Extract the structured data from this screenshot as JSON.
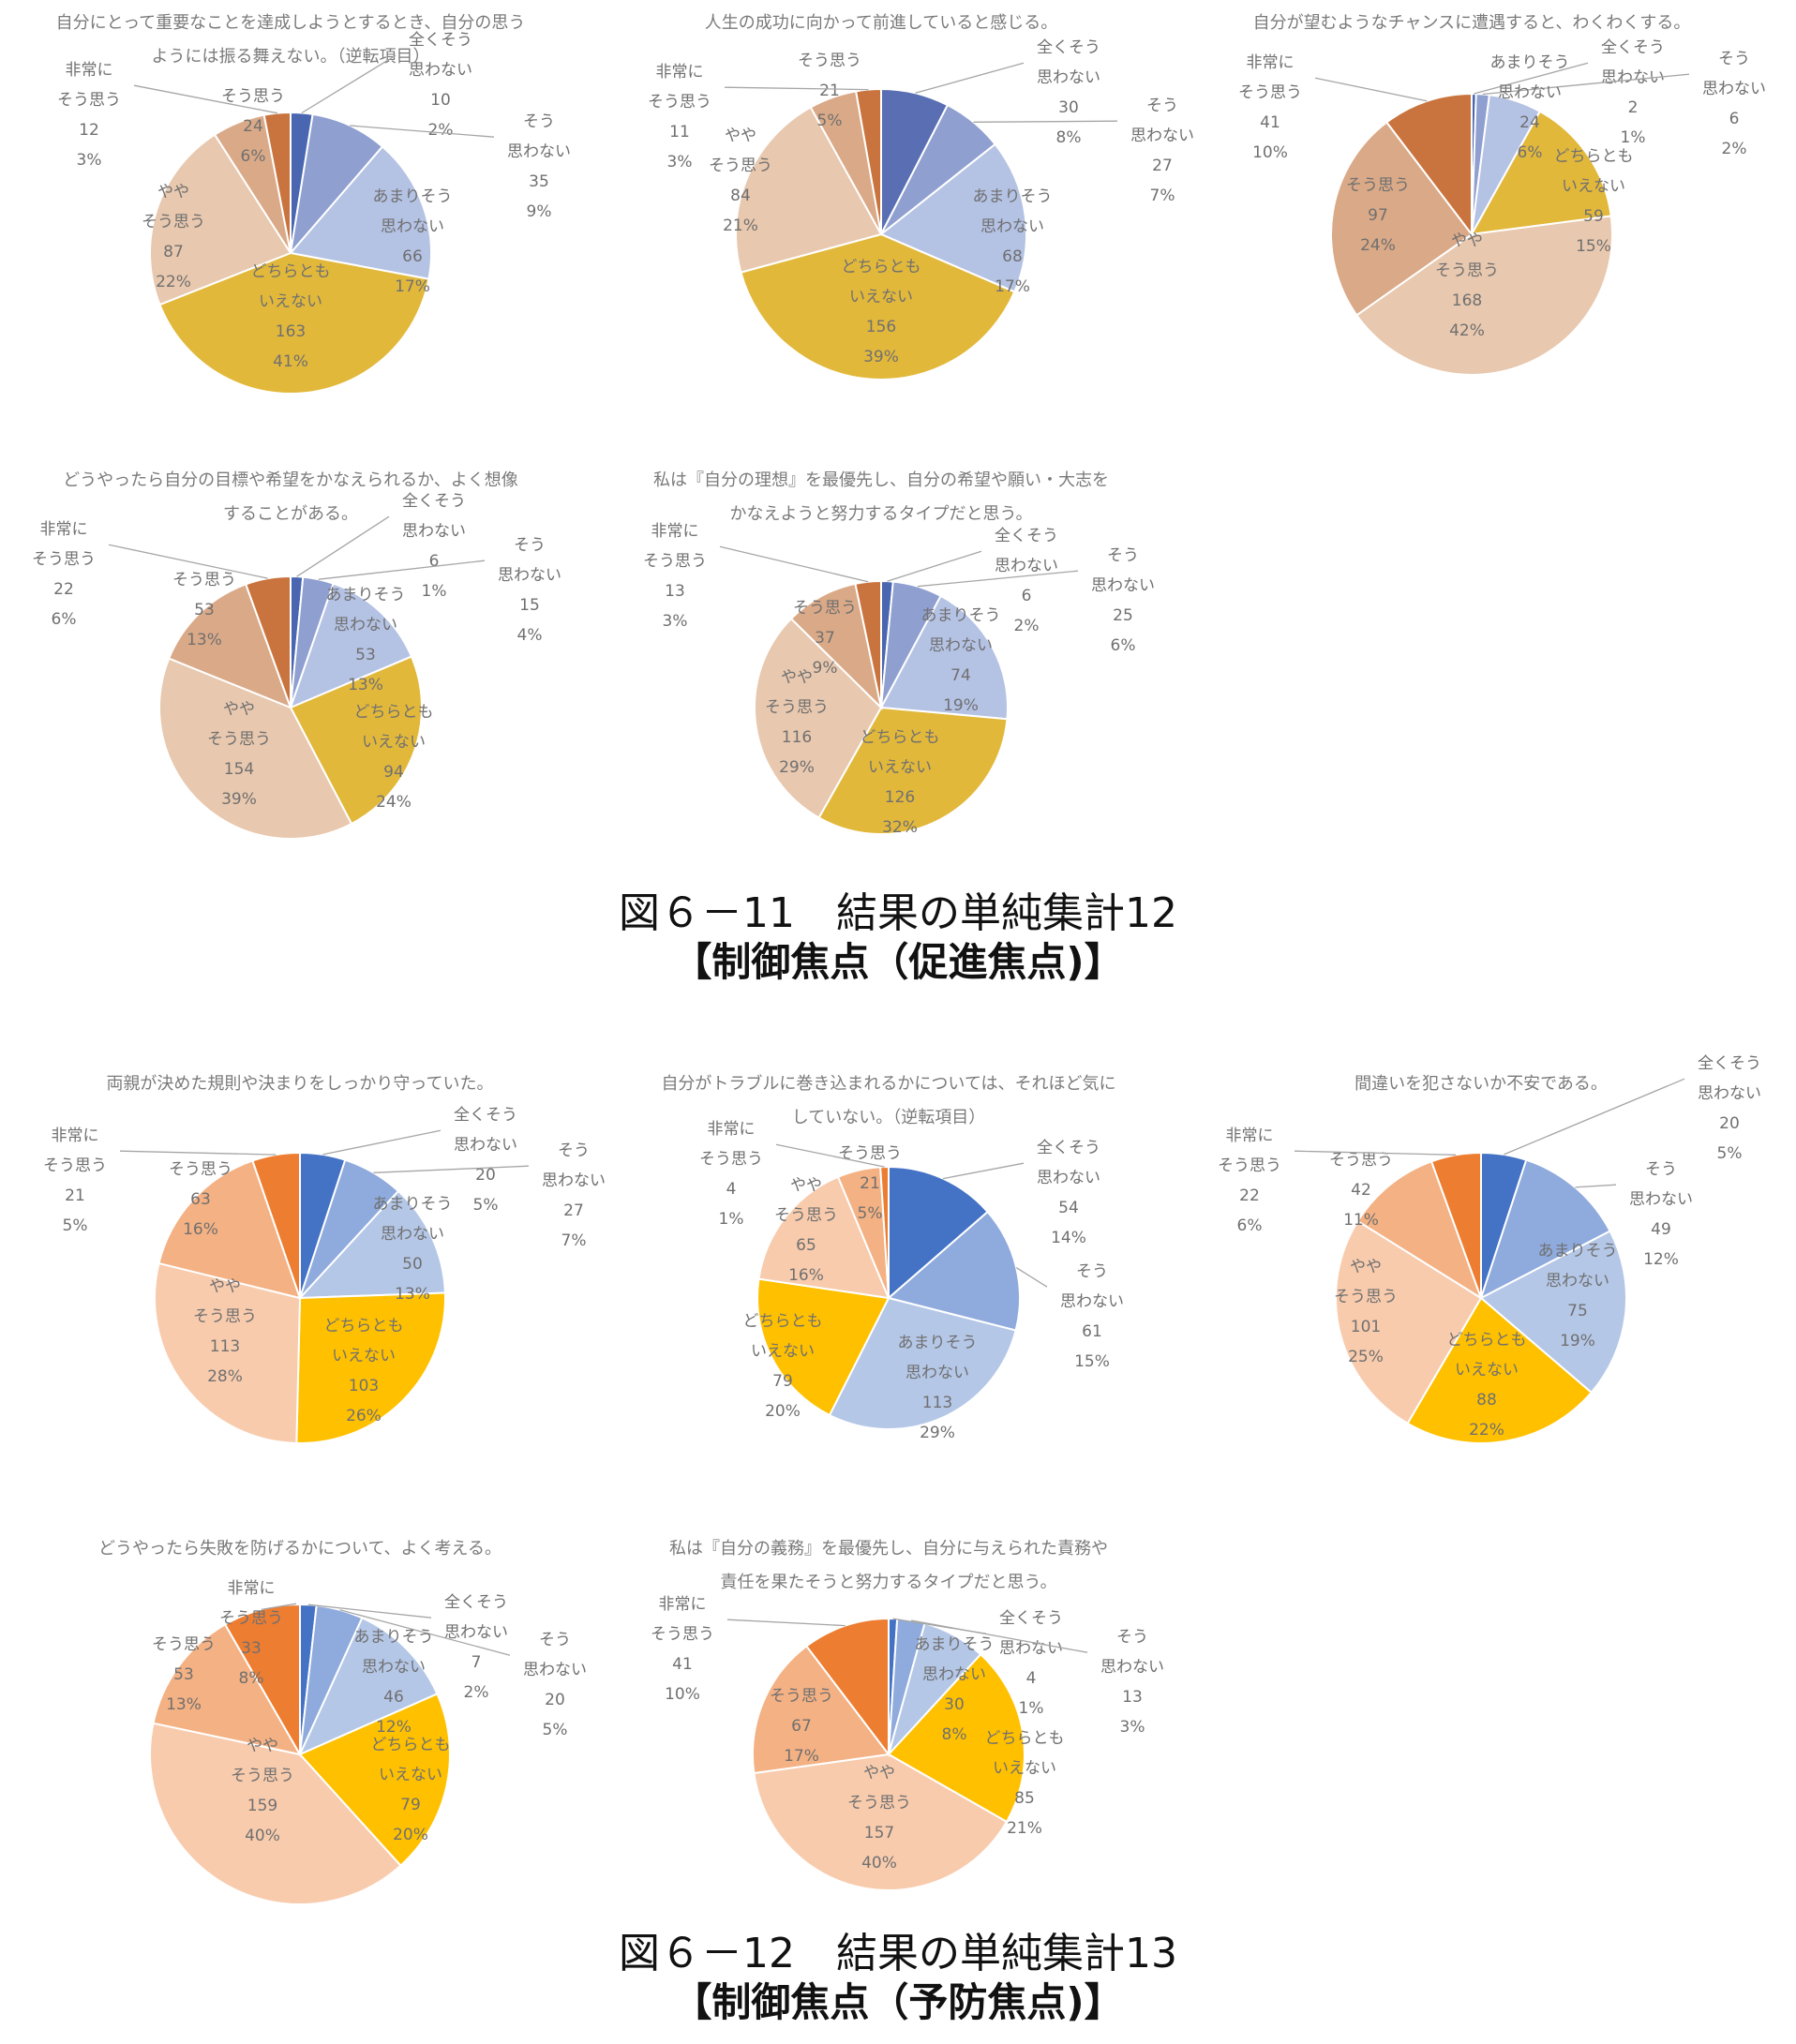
{
  "figures": [
    {
      "line1": "図６－11　結果の単純集計12",
      "line2": "【制御焦点（促進焦点)】"
    },
    {
      "line1": "図６－12　結果の単純集計13",
      "line2": "【制御焦点（予防焦点)】"
    }
  ],
  "chart_data": [
    {
      "type": "pie",
      "figure": 0,
      "title": [
        "自分にとって重要なことを達成しようとするとき、自分の思う",
        "ようには振る舞えない。（逆転項目）"
      ],
      "categories": [
        "全くそう思わない",
        "そう思わない",
        "あまりそう思わない",
        "どちらともいえない",
        "ややそう思う",
        "そう思う",
        "非常にそう思う"
      ],
      "values": [
        10,
        35,
        66,
        163,
        87,
        24,
        12
      ],
      "percents": [
        "2%",
        "9%",
        "17%",
        "41%",
        "22%",
        "6%",
        "3%"
      ],
      "colors": [
        "#4a66b0",
        "#8f9fd0",
        "#b4c2e4",
        "#e2b83b",
        "#e8c8ae",
        "#daa987",
        "#c9743e"
      ]
    },
    {
      "type": "pie",
      "figure": 0,
      "title": [
        "人生の成功に向かって前進していると感じる。"
      ],
      "categories": [
        "全くそう思わない",
        "そう思わない",
        "あまりそう思わない",
        "どちらともいえない",
        "ややそう思う",
        "そう思う",
        "非常にそう思う"
      ],
      "values": [
        30,
        27,
        68,
        156,
        84,
        21,
        11
      ],
      "percents": [
        "8%",
        "7%",
        "17%",
        "39%",
        "21%",
        "5%",
        "3%"
      ],
      "colors": [
        "#5a6fb3",
        "#8f9fd0",
        "#b4c2e4",
        "#e2b83b",
        "#e8c8ae",
        "#daa987",
        "#c9743e"
      ]
    },
    {
      "type": "pie",
      "figure": 0,
      "title": [
        "自分が望むようなチャンスに遭遇すると、わくわくする。"
      ],
      "categories": [
        "全くそう思わない",
        "そう思わない",
        "あまりそう思わない",
        "どちらともいえない",
        "ややそう思う",
        "そう思う",
        "非常にそう思う"
      ],
      "values": [
        2,
        6,
        24,
        59,
        168,
        97,
        41
      ],
      "percents": [
        "1%",
        "2%",
        "6%",
        "15%",
        "42%",
        "24%",
        "10%"
      ],
      "colors": [
        "#4a66b0",
        "#8f9fd0",
        "#b4c2e4",
        "#e2b83b",
        "#e8c8ae",
        "#daa987",
        "#c9743e"
      ]
    },
    {
      "type": "pie",
      "figure": 0,
      "title": [
        "どうやったら自分の目標や希望をかなえられるか、よく想像",
        "することがある。"
      ],
      "categories": [
        "全くそう思わない",
        "そう思わない",
        "あまりそう思わない",
        "どちらともいえない",
        "ややそう思う",
        "そう思う",
        "非常にそう思う"
      ],
      "values": [
        6,
        15,
        53,
        94,
        154,
        53,
        22
      ],
      "percents": [
        "1%",
        "4%",
        "13%",
        "24%",
        "39%",
        "13%",
        "6%"
      ],
      "colors": [
        "#4a66b0",
        "#8f9fd0",
        "#b4c2e4",
        "#e2b83b",
        "#e8c8ae",
        "#daa987",
        "#c9743e"
      ]
    },
    {
      "type": "pie",
      "figure": 0,
      "title": [
        "私は『自分の理想』を最優先し、自分の希望や願い・大志を",
        "かなえようと努力するタイプだと思う。"
      ],
      "categories": [
        "全くそう思わない",
        "そう思わない",
        "あまりそう思わない",
        "どちらともいえない",
        "ややそう思う",
        "そう思う",
        "非常にそう思う"
      ],
      "values": [
        6,
        25,
        74,
        126,
        116,
        37,
        13
      ],
      "percents": [
        "2%",
        "6%",
        "19%",
        "32%",
        "29%",
        "9%",
        "3%"
      ],
      "colors": [
        "#4a66b0",
        "#8f9fd0",
        "#b4c2e4",
        "#e2b83b",
        "#e8c8ae",
        "#daa987",
        "#c9743e"
      ]
    },
    {
      "type": "pie",
      "figure": 1,
      "title": [
        "両親が決めた規則や決まりをしっかり守っていた。"
      ],
      "categories": [
        "全くそう思わない",
        "そう思わない",
        "あまりそう思わない",
        "どちらともいえない",
        "ややそう思う",
        "そう思う",
        "非常にそう思う"
      ],
      "values": [
        20,
        27,
        50,
        103,
        113,
        63,
        21
      ],
      "percents": [
        "5%",
        "7%",
        "13%",
        "26%",
        "28%",
        "16%",
        "5%"
      ],
      "colors": [
        "#4472c4",
        "#8faadc",
        "#b4c7e7",
        "#ffc000",
        "#f8cbad",
        "#f4b183",
        "#ed7d31"
      ]
    },
    {
      "type": "pie",
      "figure": 1,
      "title": [
        "自分がトラブルに巻き込まれるかについては、それほど気に",
        "していない。（逆転項目）"
      ],
      "categories": [
        "全くそう思わない",
        "そう思わない",
        "あまりそう思わない",
        "どちらともいえない",
        "ややそう思う",
        "そう思う",
        "非常にそう思う"
      ],
      "values": [
        54,
        61,
        113,
        79,
        65,
        21,
        4
      ],
      "percents": [
        "14%",
        "15%",
        "29%",
        "20%",
        "16%",
        "5%",
        "1%"
      ],
      "colors": [
        "#4472c4",
        "#8faadc",
        "#b4c7e7",
        "#ffc000",
        "#f8cbad",
        "#f4b183",
        "#ed7d31"
      ]
    },
    {
      "type": "pie",
      "figure": 1,
      "title": [
        "間違いを犯さないか不安である。"
      ],
      "categories": [
        "全くそう思わない",
        "そう思わない",
        "あまりそう思わない",
        "どちらともいえない",
        "ややそう思う",
        "そう思う",
        "非常にそう思う"
      ],
      "values": [
        20,
        49,
        75,
        88,
        101,
        42,
        22
      ],
      "percents": [
        "5%",
        "12%",
        "19%",
        "22%",
        "25%",
        "11%",
        "6%"
      ],
      "colors": [
        "#4472c4",
        "#8faadc",
        "#b4c7e7",
        "#ffc000",
        "#f8cbad",
        "#f4b183",
        "#ed7d31"
      ]
    },
    {
      "type": "pie",
      "figure": 1,
      "title": [
        "どうやったら失敗を防げるかについて、よく考える。"
      ],
      "categories": [
        "全くそう思わない",
        "そう思わない",
        "あまりそう思わない",
        "どちらともいえない",
        "ややそう思う",
        "そう思う",
        "非常にそう思う"
      ],
      "values": [
        7,
        20,
        46,
        79,
        159,
        53,
        33
      ],
      "percents": [
        "2%",
        "5%",
        "12%",
        "20%",
        "40%",
        "13%",
        "8%"
      ],
      "colors": [
        "#4472c4",
        "#8faadc",
        "#b4c7e7",
        "#ffc000",
        "#f8cbad",
        "#f4b183",
        "#ed7d31"
      ]
    },
    {
      "type": "pie",
      "figure": 1,
      "title": [
        "私は『自分の義務』を最優先し、自分に与えられた責務や",
        "責任を果たそうと努力するタイプだと思う。"
      ],
      "categories": [
        "全くそう思わない",
        "そう思わない",
        "あまりそう思わない",
        "どちらともいえない",
        "ややそう思う",
        "そう思う",
        "非常にそう思う"
      ],
      "values": [
        4,
        13,
        30,
        85,
        157,
        67,
        41
      ],
      "percents": [
        "1%",
        "3%",
        "8%",
        "21%",
        "40%",
        "17%",
        "10%"
      ],
      "colors": [
        "#4472c4",
        "#8faadc",
        "#b4c7e7",
        "#ffc000",
        "#f8cbad",
        "#f4b183",
        "#ed7d31"
      ]
    }
  ]
}
